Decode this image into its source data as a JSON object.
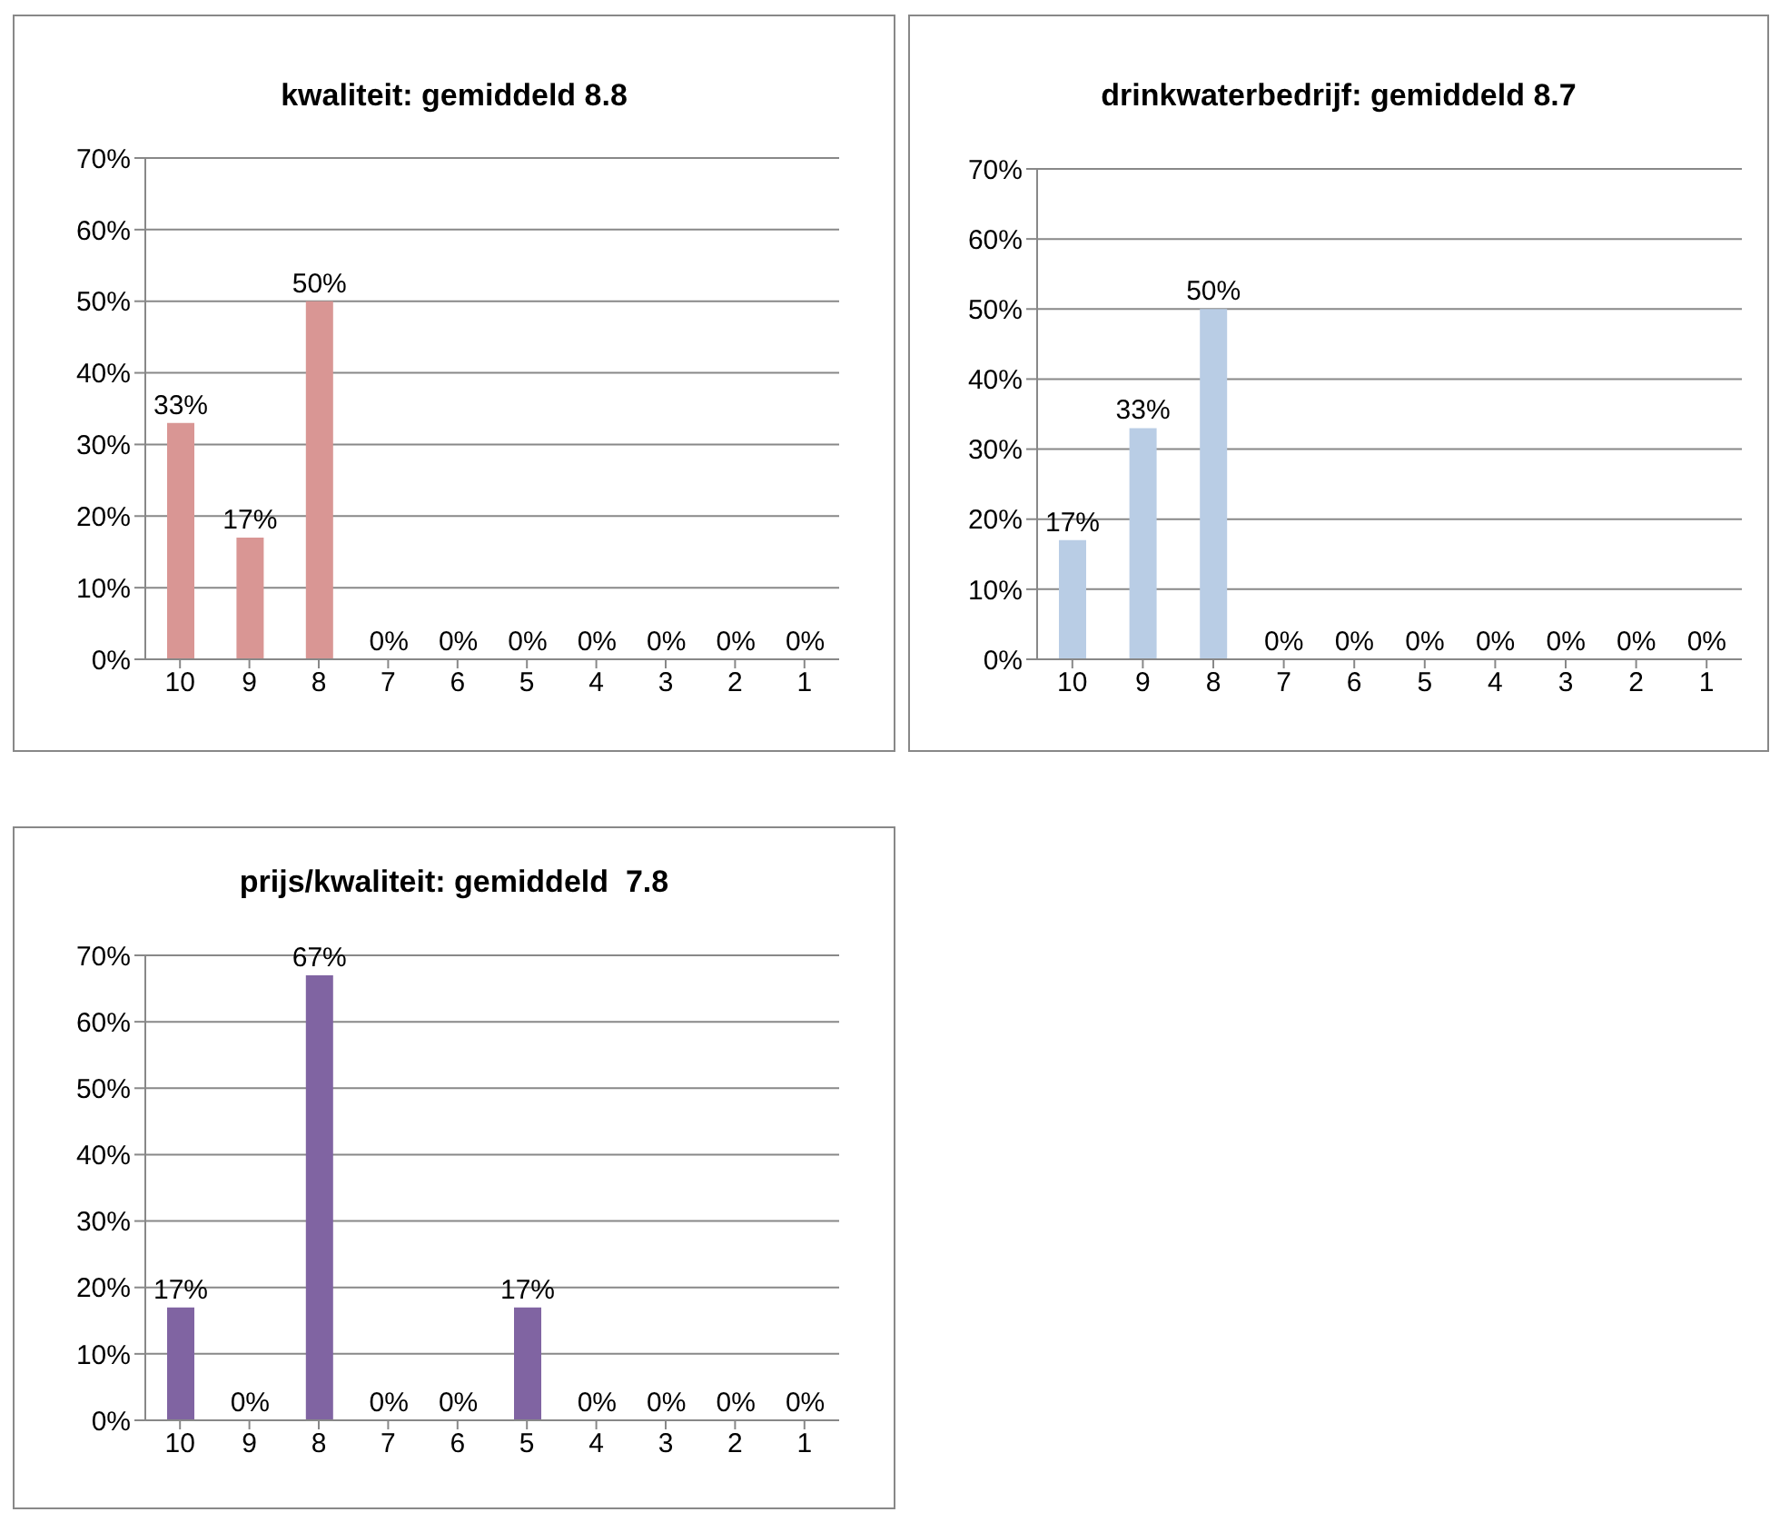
{
  "chart_data": [
    {
      "type": "bar",
      "title": "kwaliteit: gemiddeld 8.8",
      "categories": [
        "10",
        "9",
        "8",
        "7",
        "6",
        "5",
        "4",
        "3",
        "2",
        "1"
      ],
      "values": [
        33,
        17,
        50,
        0,
        0,
        0,
        0,
        0,
        0,
        0
      ],
      "value_labels": [
        "33%",
        "17%",
        "50%",
        "0%",
        "0%",
        "0%",
        "0%",
        "0%",
        "0%",
        "0%"
      ],
      "color": "#d99694",
      "ylim": [
        0,
        70
      ],
      "yticks": [
        {
          "value": 0,
          "label": "0%"
        },
        {
          "value": 10,
          "label": "10%"
        },
        {
          "value": 20,
          "label": "20%"
        },
        {
          "value": 30,
          "label": "30%"
        },
        {
          "value": 40,
          "label": "40%"
        },
        {
          "value": 50,
          "label": "50%"
        },
        {
          "value": 60,
          "label": "60%"
        },
        {
          "value": 70,
          "label": "70%"
        }
      ],
      "grid": "y",
      "legend": false
    },
    {
      "type": "bar",
      "title": "drinkwaterbedrijf: gemiddeld 8.7",
      "categories": [
        "10",
        "9",
        "8",
        "7",
        "6",
        "5",
        "4",
        "3",
        "2",
        "1"
      ],
      "values": [
        17,
        33,
        50,
        0,
        0,
        0,
        0,
        0,
        0,
        0
      ],
      "value_labels": [
        "17%",
        "33%",
        "50%",
        "0%",
        "0%",
        "0%",
        "0%",
        "0%",
        "0%",
        "0%"
      ],
      "color": "#b9cde5",
      "ylim": [
        0,
        70
      ],
      "yticks": [
        {
          "value": 0,
          "label": "0%"
        },
        {
          "value": 10,
          "label": "10%"
        },
        {
          "value": 20,
          "label": "20%"
        },
        {
          "value": 30,
          "label": "30%"
        },
        {
          "value": 40,
          "label": "40%"
        },
        {
          "value": 50,
          "label": "50%"
        },
        {
          "value": 60,
          "label": "60%"
        },
        {
          "value": 70,
          "label": "70%"
        }
      ],
      "grid": "y",
      "legend": false
    },
    {
      "type": "bar",
      "title": "prijs/kwaliteit: gemiddeld  7.8",
      "categories": [
        "10",
        "9",
        "8",
        "7",
        "6",
        "5",
        "4",
        "3",
        "2",
        "1"
      ],
      "values": [
        17,
        0,
        67,
        0,
        0,
        17,
        0,
        0,
        0,
        0
      ],
      "value_labels": [
        "17%",
        "0%",
        "67%",
        "0%",
        "0%",
        "17%",
        "0%",
        "0%",
        "0%",
        "0%"
      ],
      "color": "#8064a2",
      "ylim": [
        0,
        70
      ],
      "yticks": [
        {
          "value": 0,
          "label": "0%"
        },
        {
          "value": 10,
          "label": "10%"
        },
        {
          "value": 20,
          "label": "20%"
        },
        {
          "value": 30,
          "label": "30%"
        },
        {
          "value": 40,
          "label": "40%"
        },
        {
          "value": 50,
          "label": "50%"
        },
        {
          "value": 60,
          "label": "60%"
        },
        {
          "value": 70,
          "label": "70%"
        }
      ],
      "grid": "y",
      "legend": false
    }
  ]
}
